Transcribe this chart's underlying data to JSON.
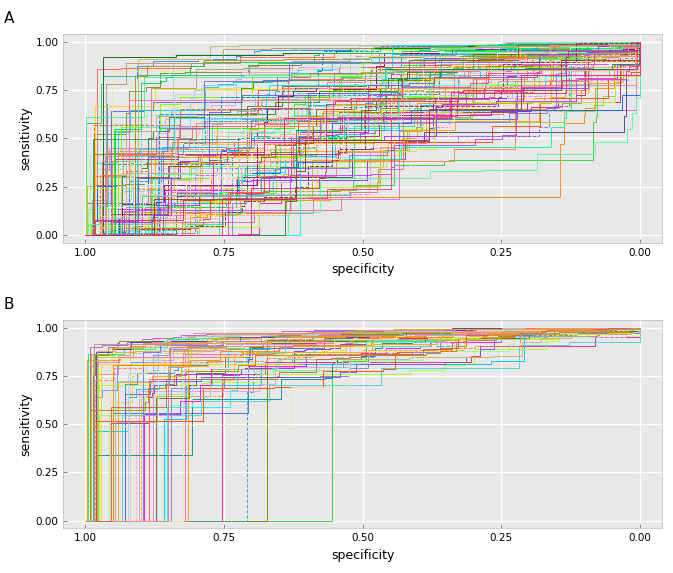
{
  "background_color": "#e8e8e8",
  "grid_color": "#ffffff",
  "panel_A_label": "A",
  "panel_B_label": "B",
  "xlabel": "specificity",
  "ylabel": "sensitivity",
  "xlim": [
    1.02,
    -0.02
  ],
  "ylim": [
    -0.02,
    1.02
  ],
  "xticks": [
    1.0,
    0.75,
    0.5,
    0.25,
    0.0
  ],
  "yticks": [
    0.0,
    0.25,
    0.5,
    0.75,
    1.0
  ],
  "n_curves_A": 120,
  "n_curves_B": 60,
  "seed_A": 7,
  "seed_B": 13,
  "linewidth": 0.7,
  "colors_pastel": [
    "#FF69B4",
    "#FF1493",
    "#FFB6C1",
    "#FFC0CB",
    "#FF6EB4",
    "#87CEEB",
    "#00BFFF",
    "#1E90FF",
    "#4169E1",
    "#6495ED",
    "#98FB98",
    "#90EE90",
    "#00FF7F",
    "#32CD32",
    "#7FFF00",
    "#ADFF2F",
    "#9ACD32",
    "#6B8E23",
    "#808000",
    "#556B2F",
    "#DDA0DD",
    "#DA70D6",
    "#EE82EE",
    "#FF00FF",
    "#BA55D3",
    "#9370DB",
    "#8A2BE2",
    "#7B68EE",
    "#6A5ACD",
    "#483D8B",
    "#00FFFF",
    "#00CED1",
    "#20B2AA",
    "#008B8B",
    "#40E0D0",
    "#48D1CC",
    "#AFEEEE",
    "#E0FFFF",
    "#B0E0E6",
    "#ADD8E6",
    "#FFA500",
    "#FF8C00",
    "#FF7F50",
    "#FF6347",
    "#FF4500",
    "#FFD700",
    "#FFC125",
    "#FFAA00",
    "#FF9900",
    "#FF8800",
    "#F0E68C",
    "#EEE8AA",
    "#BDB76B",
    "#DAA520",
    "#B8860B",
    "#FA8072",
    "#E9967A",
    "#F08080",
    "#CD5C5C",
    "#BC8F8F",
    "#66CDAA",
    "#3CB371",
    "#2E8B57",
    "#228B22",
    "#006400",
    "#FF69B4",
    "#DB7093",
    "#C71585",
    "#B03060",
    "#800080",
    "#00FA9A",
    "#00FF00",
    "#7CFC00",
    "#ADFF2F",
    "#76EE00",
    "#87CEFA",
    "#00B2EE",
    "#0096FF",
    "#0080FF",
    "#0064FF",
    "#FFDAB9",
    "#FFDEAD",
    "#FFE4B5",
    "#FFEFD5",
    "#FFF0E1",
    "#E6E6FA",
    "#F8F8FF",
    "#F5F5F5",
    "#DCDCDC",
    "#D3D3D3",
    "#FFB5C5",
    "#EEC900",
    "#54FF9F",
    "#00E5EE",
    "#FF6A6A",
    "#9B30FF",
    "#BF3EFF",
    "#7A67EE",
    "#836FFF",
    "#6959CD",
    "#43CD80",
    "#4EEE94",
    "#54FF9F",
    "#00CD66",
    "#008B45",
    "#FF7F24",
    "#EE7621",
    "#CD6619",
    "#8B4513",
    "#A0522D",
    "#F4A460",
    "#DEB887",
    "#D2B48C",
    "#C4A882",
    "#B8985E",
    "#FF3E96",
    "#EE3A8C",
    "#CD3278",
    "#8B2252",
    "#FF1493"
  ]
}
